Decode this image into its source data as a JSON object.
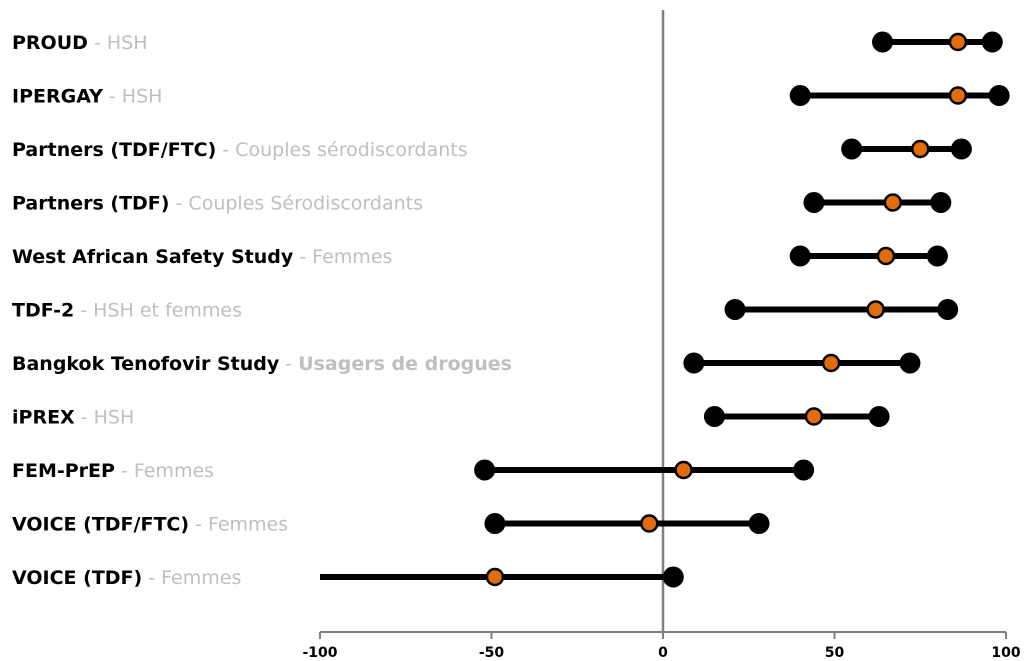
{
  "chart_data": {
    "type": "forest",
    "xlim": [
      -100,
      100
    ],
    "x_ticks": [
      -100,
      -50,
      0,
      50,
      100
    ],
    "x_tick_labels": [
      "-100",
      "-50",
      "0",
      "50",
      "100"
    ],
    "reference_line": 0,
    "colors": {
      "interval": "#000000",
      "endpoint": "#000000",
      "estimate": "#e36c0a",
      "axis": "#808080",
      "subtitle": "#bfbfbf"
    },
    "studies": [
      {
        "name": "PROUD",
        "separator": " - ",
        "population": "HSH",
        "population_bold": false,
        "low": 64,
        "estimate": 86,
        "high": 96
      },
      {
        "name": "IPERGAY",
        "separator": " - ",
        "population": "HSH",
        "population_bold": false,
        "low": 40,
        "estimate": 86,
        "high": 98
      },
      {
        "name": "Partners (TDF/FTC)",
        "separator": " - ",
        "population": "Couples sérodiscordants",
        "population_bold": false,
        "low": 55,
        "estimate": 75,
        "high": 87
      },
      {
        "name": "Partners (TDF)",
        "separator": " - ",
        "population": "Couples Sérodiscordants",
        "population_bold": false,
        "low": 44,
        "estimate": 67,
        "high": 81
      },
      {
        "name": "West African Safety Study",
        "separator": " - ",
        "population": "Femmes",
        "population_bold": false,
        "low": 40,
        "estimate": 65,
        "high": 80
      },
      {
        "name": "TDF-2",
        "separator": " - ",
        "population": "HSH  et femmes",
        "population_bold": false,
        "low": 21,
        "estimate": 62,
        "high": 83
      },
      {
        "name": "Bangkok Tenofovir Study",
        "separator": " - ",
        "population": "Usagers de drogues",
        "population_bold": true,
        "low": 9,
        "estimate": 49,
        "high": 72
      },
      {
        "name": "iPREX",
        "separator": " - ",
        "population": "HSH",
        "population_bold": false,
        "low": 15,
        "estimate": 44,
        "high": 63
      },
      {
        "name": "FEM-PrEP",
        "separator": " - ",
        "population": "Femmes",
        "population_bold": false,
        "low": -52,
        "estimate": 6,
        "high": 41
      },
      {
        "name": "VOICE (TDF/FTC)",
        "separator": " - ",
        "population": "Femmes",
        "population_bold": false,
        "low": -49,
        "estimate": -4,
        "high": 28
      },
      {
        "name": "VOICE (TDF)",
        "separator": " - ",
        "population": "Femmes",
        "population_bold": false,
        "low": -100,
        "estimate": -49,
        "high": 3,
        "low_marker": false
      }
    ]
  }
}
